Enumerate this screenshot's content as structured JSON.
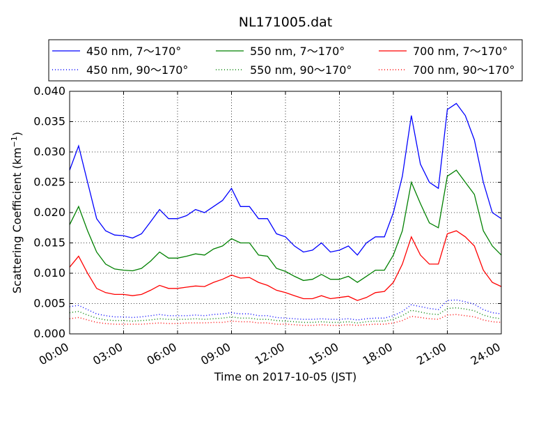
{
  "chart_data": {
    "type": "line",
    "title": "NL171005.dat",
    "xlabel": "Time on 2017-10-05 (JST)",
    "ylabel": "Scattering Coefficient (km",
    "ylabel_superscript": "−1",
    "ylabel_close": ")",
    "xlim": [
      0,
      24
    ],
    "ylim": [
      0.0,
      0.04
    ],
    "grid": true,
    "legend_position": "top, above plot, 3 columns",
    "x_ticks": [
      0,
      3,
      6,
      9,
      12,
      15,
      18,
      21,
      24
    ],
    "x_tick_labels": [
      "00:00",
      "03:00",
      "06:00",
      "09:00",
      "12:00",
      "15:00",
      "18:00",
      "21:00",
      "24:00"
    ],
    "y_ticks": [
      0.0,
      0.005,
      0.01,
      0.015,
      0.02,
      0.025,
      0.03,
      0.035,
      0.04
    ],
    "y_tick_labels": [
      "0.000",
      "0.005",
      "0.010",
      "0.015",
      "0.020",
      "0.025",
      "0.030",
      "0.035",
      "0.040"
    ],
    "x": [
      0,
      0.5,
      1,
      1.5,
      2,
      2.5,
      3,
      3.5,
      4,
      4.5,
      5,
      5.5,
      6,
      6.5,
      7,
      7.5,
      8,
      8.5,
      9,
      9.5,
      10,
      10.5,
      11,
      11.5,
      12,
      12.5,
      13,
      13.5,
      14,
      14.5,
      15,
      15.5,
      16,
      16.5,
      17,
      17.5,
      18,
      18.5,
      19,
      19.5,
      20,
      20.5,
      21,
      21.5,
      22,
      22.5,
      23,
      23.5,
      24
    ],
    "series": [
      {
        "name": "450 nm, 7～170°",
        "color": "#0000ff",
        "style": "solid",
        "values": [
          0.027,
          0.031,
          0.025,
          0.019,
          0.017,
          0.0163,
          0.0162,
          0.0158,
          0.0165,
          0.0185,
          0.0205,
          0.019,
          0.019,
          0.0195,
          0.0205,
          0.02,
          0.021,
          0.022,
          0.024,
          0.021,
          0.021,
          0.019,
          0.019,
          0.0165,
          0.016,
          0.0145,
          0.0135,
          0.0138,
          0.015,
          0.0135,
          0.0138,
          0.0145,
          0.013,
          0.015,
          0.016,
          0.016,
          0.02,
          0.026,
          0.036,
          0.028,
          0.025,
          0.024,
          0.037,
          0.038,
          0.036,
          0.032,
          0.025,
          0.02,
          0.019
        ]
      },
      {
        "name": "550 nm, 7～170°",
        "color": "#008000",
        "style": "solid",
        "values": [
          0.018,
          0.021,
          0.017,
          0.0135,
          0.0115,
          0.0107,
          0.0105,
          0.0104,
          0.0108,
          0.012,
          0.0135,
          0.0125,
          0.0125,
          0.0128,
          0.0132,
          0.013,
          0.014,
          0.0145,
          0.0157,
          0.015,
          0.015,
          0.013,
          0.0128,
          0.0108,
          0.0103,
          0.0095,
          0.0088,
          0.009,
          0.0098,
          0.009,
          0.009,
          0.0095,
          0.0085,
          0.0095,
          0.0105,
          0.0105,
          0.013,
          0.017,
          0.025,
          0.0215,
          0.0183,
          0.0175,
          0.026,
          0.027,
          0.025,
          0.023,
          0.017,
          0.0145,
          0.013
        ]
      },
      {
        "name": "700 nm, 7～170°",
        "color": "#ff0000",
        "style": "solid",
        "values": [
          0.011,
          0.0128,
          0.01,
          0.0075,
          0.0068,
          0.0065,
          0.0065,
          0.0063,
          0.0065,
          0.0072,
          0.008,
          0.0075,
          0.0075,
          0.0077,
          0.0079,
          0.0078,
          0.0085,
          0.009,
          0.0097,
          0.0092,
          0.0093,
          0.0085,
          0.008,
          0.0072,
          0.0068,
          0.0063,
          0.0058,
          0.0058,
          0.0063,
          0.0058,
          0.006,
          0.0062,
          0.0055,
          0.006,
          0.0068,
          0.007,
          0.0085,
          0.0115,
          0.016,
          0.013,
          0.0115,
          0.0115,
          0.0165,
          0.017,
          0.016,
          0.0145,
          0.0105,
          0.0085,
          0.0078
        ]
      },
      {
        "name": "450 nm, 90～170°",
        "color": "#0000ff",
        "style": "dotted",
        "values": [
          0.0045,
          0.0047,
          0.004,
          0.0033,
          0.003,
          0.0028,
          0.0028,
          0.0027,
          0.0028,
          0.003,
          0.0032,
          0.003,
          0.003,
          0.003,
          0.0031,
          0.003,
          0.0032,
          0.0033,
          0.0035,
          0.0033,
          0.0033,
          0.003,
          0.003,
          0.0027,
          0.0026,
          0.0025,
          0.0024,
          0.0024,
          0.0025,
          0.0024,
          0.0024,
          0.0025,
          0.0023,
          0.0025,
          0.0026,
          0.0026,
          0.003,
          0.0037,
          0.0048,
          0.0045,
          0.0042,
          0.004,
          0.0055,
          0.0056,
          0.0053,
          0.0049,
          0.004,
          0.0035,
          0.0033
        ]
      },
      {
        "name": "550 nm, 90～170°",
        "color": "#008000",
        "style": "dotted",
        "values": [
          0.0035,
          0.0037,
          0.0031,
          0.0026,
          0.0023,
          0.0022,
          0.0022,
          0.0021,
          0.0022,
          0.0023,
          0.0025,
          0.0024,
          0.0024,
          0.0024,
          0.0025,
          0.0024,
          0.0025,
          0.0026,
          0.0028,
          0.0026,
          0.0026,
          0.0024,
          0.0024,
          0.0022,
          0.0021,
          0.002,
          0.0019,
          0.0019,
          0.002,
          0.0019,
          0.0019,
          0.002,
          0.0018,
          0.002,
          0.0021,
          0.0021,
          0.0024,
          0.003,
          0.0039,
          0.0036,
          0.0033,
          0.0032,
          0.0042,
          0.0043,
          0.0041,
          0.0038,
          0.0031,
          0.0027,
          0.0025
        ]
      },
      {
        "name": "700 nm, 90～170°",
        "color": "#ff0000",
        "style": "dotted",
        "values": [
          0.0025,
          0.0027,
          0.0023,
          0.0019,
          0.0017,
          0.0016,
          0.0016,
          0.0016,
          0.0016,
          0.0017,
          0.0018,
          0.0017,
          0.0017,
          0.0018,
          0.0018,
          0.0018,
          0.0019,
          0.0019,
          0.0021,
          0.002,
          0.002,
          0.0018,
          0.0018,
          0.0016,
          0.0016,
          0.0015,
          0.0014,
          0.0014,
          0.0015,
          0.0014,
          0.0014,
          0.0015,
          0.0014,
          0.0015,
          0.0016,
          0.0016,
          0.0018,
          0.0022,
          0.0029,
          0.0027,
          0.0025,
          0.0024,
          0.0031,
          0.0032,
          0.003,
          0.0028,
          0.0023,
          0.002,
          0.0019
        ]
      }
    ]
  }
}
